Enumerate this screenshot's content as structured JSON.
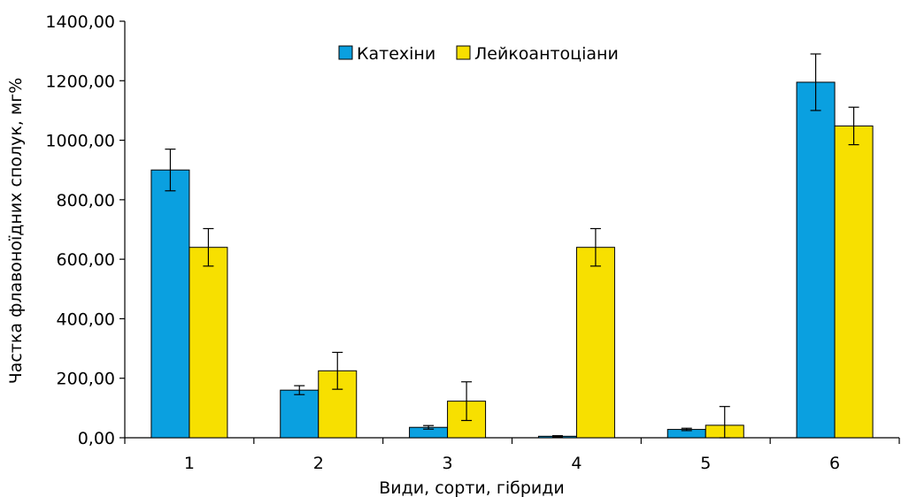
{
  "chart_data": {
    "type": "bar",
    "title": "",
    "xlabel": "Види, сорти, гібриди",
    "ylabel": "Частка флавоноїдних сполук, мг%",
    "ylim": [
      0,
      1400
    ],
    "y_ticks": [
      "0,00",
      "200,00",
      "400,00",
      "600,00",
      "800,00",
      "1000,00",
      "1200,00",
      "1400,00"
    ],
    "categories": [
      "1",
      "2",
      "3",
      "4",
      "5",
      "6"
    ],
    "grid": false,
    "legend_position": "top-center",
    "series": [
      {
        "name": "Катехіни",
        "color": "#0aa0e0",
        "values": [
          900,
          160,
          35,
          5,
          28,
          1195
        ],
        "errors": [
          70,
          15,
          6,
          2,
          4,
          95
        ]
      },
      {
        "name": "Лейкоантоціани",
        "color": "#f7e000",
        "values": [
          640,
          225,
          123,
          640,
          42,
          1048
        ],
        "errors": [
          63,
          62,
          65,
          63,
          63,
          63
        ]
      }
    ]
  }
}
